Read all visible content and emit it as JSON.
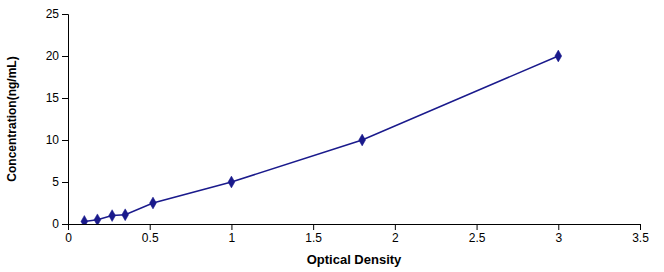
{
  "chart_data": {
    "type": "line",
    "x": [
      0.1,
      0.18,
      0.27,
      0.35,
      0.52,
      1.0,
      1.8,
      3.0
    ],
    "values": [
      0.31,
      0.5,
      1.0,
      1.1,
      2.5,
      5.0,
      10.0,
      20.0
    ],
    "color": "#1a1a8c",
    "marker": "diamond",
    "xlabel": "Optical Density",
    "ylabel": "Concentration(ng/mL)",
    "xlim": [
      0,
      3.5
    ],
    "ylim": [
      0,
      25
    ],
    "xticks": [
      0,
      0.5,
      1,
      1.5,
      2,
      2.5,
      3,
      3.5
    ],
    "yticks": [
      0,
      5,
      10,
      15,
      20,
      25
    ],
    "grid": false
  }
}
